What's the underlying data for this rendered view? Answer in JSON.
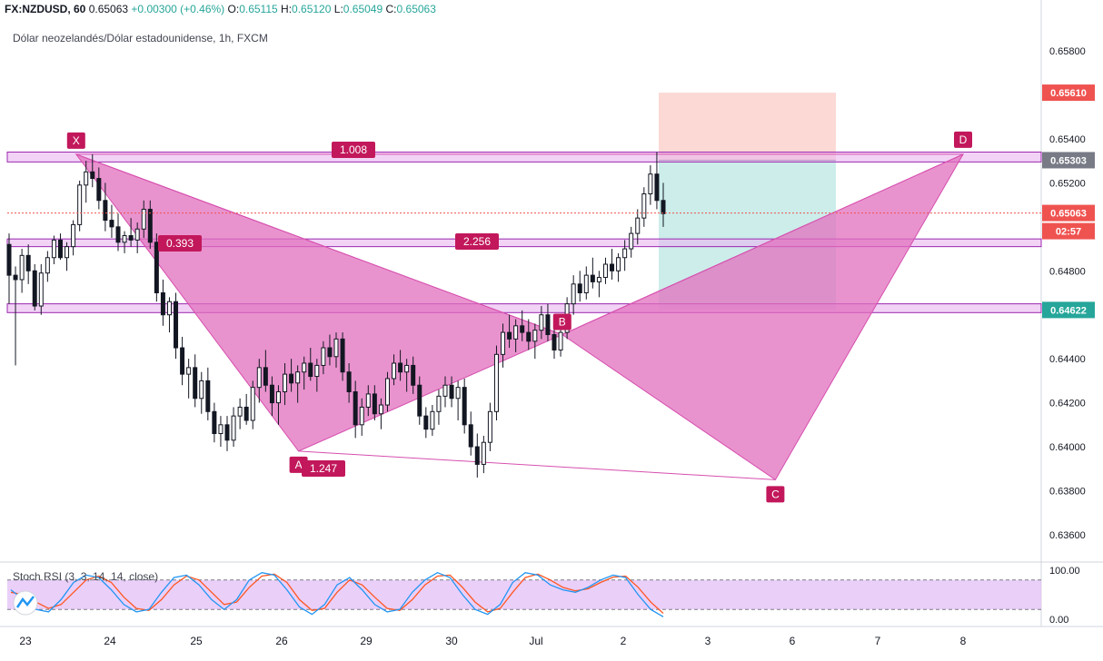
{
  "header": {
    "symbol": "FX:NZDUSD, 60",
    "last": "0.65063",
    "change": "+0.00300 (+0.46%)",
    "o_label": "O:",
    "o": "0.65115",
    "h_label": "H:",
    "h": "0.65120",
    "l_label": "L:",
    "l": "0.65049",
    "c_label": "C:",
    "c": "0.65063"
  },
  "subtitle": "Dólar neozelandés/Dólar estadounidense, 1h, FXCM",
  "colors": {
    "up": "#26a69a",
    "down": "#ef5350",
    "candle": "#131722",
    "pattern_fill": "#e26fbe",
    "pattern_line": "#d64fae",
    "label_bg": "#c2185b",
    "band_fill": "#e9b6f0",
    "band_line": "#9c27b0",
    "stop_zone": "#fbd0cb",
    "target_zone": "#c6ebe8",
    "rsi_k": "#2196f3",
    "rsi_d": "#ff5722",
    "rsi_band": "#e6c7f8"
  },
  "chart_data": {
    "type": "candlestick",
    "y_axis": {
      "range": [
        0.6348,
        0.6592
      ],
      "ticks": [
        "0.65800",
        "0.65400",
        "0.65200",
        "0.64800",
        "0.64400",
        "0.64200",
        "0.64000",
        "0.63800",
        "0.63600"
      ]
    },
    "x_axis": {
      "ticks": [
        "23",
        "24",
        "25",
        "26",
        "29",
        "30",
        "Jul",
        "2",
        "3",
        "6",
        "7",
        "8"
      ]
    },
    "price_labels": [
      {
        "text": "0.65610",
        "value": 0.6561,
        "color": "#ef5350"
      },
      {
        "text": "0.65303",
        "value": 0.65303,
        "color": "#787b86"
      },
      {
        "text": "0.65063",
        "value": 0.65063,
        "color": "#ef5350"
      },
      {
        "text": "02:57",
        "value": 0.65063,
        "color": "#ef5350",
        "note": "countdown"
      },
      {
        "text": "0.64622",
        "value": 0.64622,
        "color": "#26a69a"
      }
    ],
    "last_price": 0.65063,
    "pattern": {
      "points": [
        {
          "name": "X",
          "t": 0.6,
          "price": 0.6533
        },
        {
          "name": "A",
          "t": 3.2,
          "price": 0.6398
        },
        {
          "name": "B",
          "t": 6.3,
          "price": 0.6451
        },
        {
          "name": "C",
          "t": 8.8,
          "price": 0.6385
        },
        {
          "name": "D",
          "t": 11.9,
          "price": 0.6533
        }
      ],
      "ratios": [
        {
          "text": "1.008",
          "between": "X-D"
        },
        {
          "text": "0.393",
          "between": "X-B"
        },
        {
          "text": "2.256",
          "between": "B-D"
        },
        {
          "text": "1.247",
          "between": "A-C"
        }
      ]
    },
    "bands": [
      {
        "low": 0.65295,
        "high": 0.6534
      },
      {
        "low": 0.6491,
        "high": 0.64945
      },
      {
        "low": 0.6461,
        "high": 0.6465
      }
    ],
    "position": {
      "entry": 0.65303,
      "stop": 0.6561,
      "target": 0.64622,
      "t_start": 12.1,
      "t_end": 15.3
    },
    "candles_approx": [
      [
        0.6492,
        0.6497,
        0.6465,
        0.6478
      ],
      [
        0.6478,
        0.6482,
        0.6437,
        0.6476
      ],
      [
        0.6476,
        0.649,
        0.647,
        0.6487
      ],
      [
        0.6487,
        0.6492,
        0.6474,
        0.648
      ],
      [
        0.648,
        0.6483,
        0.6462,
        0.6464
      ],
      [
        0.6464,
        0.6483,
        0.646,
        0.6479
      ],
      [
        0.6479,
        0.6489,
        0.6475,
        0.6486
      ],
      [
        0.6486,
        0.6496,
        0.6483,
        0.6494
      ],
      [
        0.6494,
        0.6497,
        0.6485,
        0.6486
      ],
      [
        0.6486,
        0.6493,
        0.648,
        0.6491
      ],
      [
        0.6491,
        0.6503,
        0.6487,
        0.6501
      ],
      [
        0.6501,
        0.6521,
        0.6498,
        0.6519
      ],
      [
        0.6519,
        0.653,
        0.6511,
        0.6525
      ],
      [
        0.6525,
        0.6533,
        0.6518,
        0.6522
      ],
      [
        0.6522,
        0.6527,
        0.6508,
        0.6512
      ],
      [
        0.6512,
        0.652,
        0.6498,
        0.6503
      ],
      [
        0.6503,
        0.651,
        0.6495,
        0.65
      ],
      [
        0.65,
        0.6506,
        0.6489,
        0.6493
      ],
      [
        0.6493,
        0.6498,
        0.6488,
        0.6496
      ],
      [
        0.6496,
        0.6504,
        0.6491,
        0.6494
      ],
      [
        0.6494,
        0.6502,
        0.6488,
        0.6499
      ],
      [
        0.6499,
        0.6512,
        0.6495,
        0.6508
      ],
      [
        0.6508,
        0.6512,
        0.649,
        0.6493
      ],
      [
        0.6493,
        0.6497,
        0.6466,
        0.647
      ],
      [
        0.647,
        0.6476,
        0.6455,
        0.646
      ],
      [
        0.646,
        0.6468,
        0.6452,
        0.6466
      ],
      [
        0.6466,
        0.647,
        0.644,
        0.6445
      ],
      [
        0.6445,
        0.645,
        0.6428,
        0.6433
      ],
      [
        0.6433,
        0.644,
        0.6422,
        0.6436
      ],
      [
        0.6436,
        0.6442,
        0.6418,
        0.6422
      ],
      [
        0.6422,
        0.6434,
        0.6415,
        0.643
      ],
      [
        0.643,
        0.6436,
        0.6412,
        0.6416
      ],
      [
        0.6416,
        0.642,
        0.6402,
        0.6406
      ],
      [
        0.6406,
        0.6414,
        0.64,
        0.641
      ],
      [
        0.641,
        0.6414,
        0.6398,
        0.6403
      ],
      [
        0.6403,
        0.6418,
        0.64,
        0.6414
      ],
      [
        0.6414,
        0.6422,
        0.6408,
        0.6418
      ],
      [
        0.6418,
        0.6424,
        0.641,
        0.6412
      ],
      [
        0.6412,
        0.643,
        0.6408,
        0.6427
      ],
      [
        0.6427,
        0.644,
        0.642,
        0.6436
      ],
      [
        0.6436,
        0.6444,
        0.6425,
        0.6428
      ],
      [
        0.6428,
        0.6432,
        0.6414,
        0.642
      ],
      [
        0.642,
        0.6428,
        0.641,
        0.6425
      ],
      [
        0.6425,
        0.6438,
        0.6419,
        0.6433
      ],
      [
        0.6433,
        0.644,
        0.6425,
        0.6429
      ],
      [
        0.6429,
        0.6437,
        0.642,
        0.6434
      ],
      [
        0.6434,
        0.6441,
        0.6426,
        0.6438
      ],
      [
        0.6438,
        0.6445,
        0.643,
        0.6432
      ],
      [
        0.6432,
        0.644,
        0.6425,
        0.6437
      ],
      [
        0.6437,
        0.6448,
        0.6433,
        0.6445
      ],
      [
        0.6445,
        0.6451,
        0.6437,
        0.6441
      ],
      [
        0.6441,
        0.6452,
        0.6436,
        0.6449
      ],
      [
        0.6449,
        0.6452,
        0.643,
        0.6434
      ],
      [
        0.6434,
        0.6438,
        0.642,
        0.6425
      ],
      [
        0.6425,
        0.643,
        0.6404,
        0.641
      ],
      [
        0.641,
        0.6422,
        0.6405,
        0.6418
      ],
      [
        0.6418,
        0.6428,
        0.6414,
        0.6424
      ],
      [
        0.6424,
        0.6428,
        0.6412,
        0.6415
      ],
      [
        0.6415,
        0.6422,
        0.6408,
        0.6419
      ],
      [
        0.6419,
        0.6434,
        0.6416,
        0.6431
      ],
      [
        0.6431,
        0.6442,
        0.6428,
        0.6438
      ],
      [
        0.6438,
        0.6444,
        0.643,
        0.6434
      ],
      [
        0.6434,
        0.644,
        0.6425,
        0.6437
      ],
      [
        0.6437,
        0.6441,
        0.6424,
        0.6428
      ],
      [
        0.6428,
        0.6432,
        0.641,
        0.6414
      ],
      [
        0.6414,
        0.6418,
        0.6404,
        0.6408
      ],
      [
        0.6408,
        0.6419,
        0.6405,
        0.6416
      ],
      [
        0.6416,
        0.6426,
        0.641,
        0.6423
      ],
      [
        0.6423,
        0.6432,
        0.6418,
        0.6428
      ],
      [
        0.6428,
        0.6432,
        0.6418,
        0.6422
      ],
      [
        0.6422,
        0.643,
        0.6412,
        0.6427
      ],
      [
        0.6427,
        0.6431,
        0.6406,
        0.641
      ],
      [
        0.641,
        0.6416,
        0.6396,
        0.64
      ],
      [
        0.64,
        0.6406,
        0.6386,
        0.6392
      ],
      [
        0.6392,
        0.6405,
        0.6388,
        0.6402
      ],
      [
        0.6402,
        0.642,
        0.6398,
        0.6416
      ],
      [
        0.6416,
        0.6446,
        0.6412,
        0.6442
      ],
      [
        0.6442,
        0.6456,
        0.6436,
        0.6452
      ],
      [
        0.6452,
        0.646,
        0.6445,
        0.6449
      ],
      [
        0.6449,
        0.6458,
        0.6443,
        0.6455
      ],
      [
        0.6455,
        0.6462,
        0.6448,
        0.6452
      ],
      [
        0.6452,
        0.6458,
        0.6444,
        0.6448
      ],
      [
        0.6448,
        0.6456,
        0.644,
        0.6453
      ],
      [
        0.6453,
        0.6464,
        0.6449,
        0.646
      ],
      [
        0.646,
        0.6465,
        0.6448,
        0.6451
      ],
      [
        0.6451,
        0.6456,
        0.644,
        0.6444
      ],
      [
        0.6444,
        0.6455,
        0.6441,
        0.6452
      ],
      [
        0.6452,
        0.6468,
        0.6449,
        0.6465
      ],
      [
        0.6465,
        0.6478,
        0.646,
        0.6474
      ],
      [
        0.6474,
        0.648,
        0.6466,
        0.647
      ],
      [
        0.647,
        0.6482,
        0.6467,
        0.6478
      ],
      [
        0.6478,
        0.6486,
        0.6472,
        0.6475
      ],
      [
        0.6475,
        0.648,
        0.6468,
        0.6477
      ],
      [
        0.6477,
        0.6486,
        0.6474,
        0.6483
      ],
      [
        0.6483,
        0.649,
        0.6476,
        0.648
      ],
      [
        0.648,
        0.6488,
        0.6475,
        0.6486
      ],
      [
        0.6486,
        0.6494,
        0.648,
        0.649
      ],
      [
        0.649,
        0.65,
        0.6486,
        0.6497
      ],
      [
        0.6497,
        0.6508,
        0.6492,
        0.6504
      ],
      [
        0.6504,
        0.6518,
        0.65,
        0.6515
      ],
      [
        0.6515,
        0.6528,
        0.651,
        0.6524
      ],
      [
        0.6524,
        0.6534,
        0.6508,
        0.6512
      ],
      [
        0.6512,
        0.652,
        0.65,
        0.6506
      ]
    ]
  },
  "stoch": {
    "label": "Stoch RSI (3, 3, 14, 14, close)",
    "ticks": [
      "100.00",
      "0.00"
    ],
    "k": [
      60,
      40,
      20,
      15,
      40,
      75,
      90,
      85,
      60,
      30,
      15,
      20,
      55,
      85,
      90,
      70,
      40,
      20,
      40,
      80,
      95,
      90,
      60,
      25,
      10,
      30,
      70,
      85,
      60,
      30,
      15,
      20,
      55,
      80,
      95,
      85,
      50,
      20,
      10,
      30,
      75,
      95,
      90,
      70,
      60,
      55,
      65,
      80,
      90,
      85,
      50,
      20,
      5
    ],
    "d": [
      55,
      50,
      35,
      22,
      30,
      55,
      80,
      88,
      75,
      45,
      22,
      18,
      40,
      70,
      88,
      80,
      55,
      30,
      35,
      65,
      88,
      92,
      75,
      40,
      18,
      22,
      55,
      80,
      70,
      45,
      22,
      18,
      40,
      70,
      88,
      90,
      65,
      35,
      15,
      22,
      55,
      85,
      92,
      80,
      65,
      58,
      62,
      75,
      86,
      88,
      65,
      35,
      12
    ]
  }
}
